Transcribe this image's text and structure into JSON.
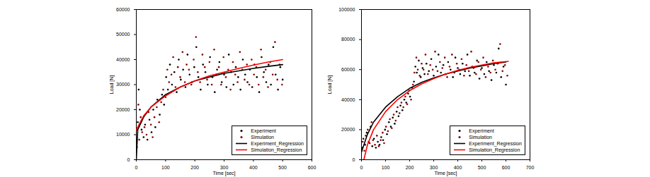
{
  "chart_data": [
    {
      "type": "scatter",
      "x_label": "Time [sec]",
      "y_label": "Load [N]",
      "xlim": [
        0,
        600
      ],
      "xticks": [
        0,
        100,
        200,
        300,
        400,
        500,
        600
      ],
      "ylim": [
        0,
        60000
      ],
      "yticks": [
        0,
        10000,
        20000,
        30000,
        40000,
        50000,
        60000
      ],
      "legend": "lower right",
      "series": [
        {
          "name": "Experiment",
          "type": "scatter",
          "marker": "circle",
          "color": "#000000",
          "x": [
            2,
            5,
            8,
            12,
            18,
            25,
            30,
            38,
            45,
            52,
            58,
            65,
            72,
            80,
            88,
            95,
            102,
            108,
            115,
            122,
            130,
            138,
            145,
            152,
            160,
            168,
            175,
            182,
            190,
            198,
            205,
            212,
            220,
            228,
            236,
            244,
            252,
            260,
            268,
            276,
            284,
            292,
            300,
            308,
            316,
            324,
            332,
            340,
            348,
            356,
            364,
            372,
            380,
            388,
            396,
            404,
            412,
            420,
            428,
            436,
            444,
            452,
            460,
            468,
            476,
            484,
            492,
            500
          ],
          "values": [
            5000,
            15000,
            28000,
            20000,
            12000,
            9000,
            14000,
            8000,
            16000,
            11000,
            20000,
            13000,
            24000,
            18000,
            26000,
            22000,
            33000,
            28000,
            38000,
            30000,
            35000,
            27000,
            40000,
            32000,
            36000,
            29000,
            42000,
            34000,
            31000,
            37000,
            45000,
            33000,
            28000,
            38000,
            35000,
            30000,
            41000,
            33000,
            27000,
            36000,
            39000,
            31000,
            34000,
            29000,
            42000,
            35000,
            30000,
            37000,
            33000,
            28000,
            40000,
            34000,
            31000,
            36000,
            29000,
            38000,
            33000,
            27000,
            41000,
            35000,
            31000,
            38000,
            30000,
            45000,
            34000,
            28000,
            37000,
            32000
          ]
        },
        {
          "name": "Simulation",
          "type": "scatter",
          "marker": "circle",
          "color": "#8b0000",
          "x": [
            3,
            7,
            10,
            15,
            20,
            28,
            35,
            42,
            50,
            56,
            62,
            70,
            78,
            85,
            92,
            100,
            106,
            112,
            120,
            126,
            134,
            142,
            150,
            158,
            166,
            172,
            180,
            188,
            196,
            204,
            210,
            218,
            226,
            234,
            242,
            250,
            258,
            266,
            274,
            282,
            290,
            298,
            306,
            314,
            322,
            330,
            338,
            346,
            354,
            362,
            370,
            378,
            386,
            394,
            402,
            410,
            418,
            426,
            434,
            442,
            450,
            458,
            466,
            474,
            482,
            490,
            498
          ],
          "values": [
            12000,
            22000,
            8000,
            17000,
            11000,
            13000,
            10000,
            19000,
            14000,
            9000,
            17000,
            21000,
            15000,
            23000,
            28000,
            25000,
            36000,
            31000,
            34000,
            41000,
            29000,
            37000,
            33000,
            43000,
            31000,
            38000,
            36000,
            30000,
            40000,
            49000,
            35000,
            31000,
            42000,
            37000,
            32000,
            39000,
            30000,
            44000,
            34000,
            37000,
            30000,
            41000,
            33000,
            36000,
            28000,
            39000,
            34000,
            31000,
            43000,
            36000,
            32000,
            38000,
            30000,
            40000,
            34000,
            37000,
            30000,
            44000,
            33000,
            36000,
            29000,
            39000,
            34000,
            47000,
            32000,
            38000,
            30000
          ]
        },
        {
          "name": "Experiment_Regression",
          "type": "line",
          "line_style": "solid",
          "color": "#000000",
          "x": [
            0,
            5,
            25,
            50,
            100,
            150,
            200,
            250,
            300,
            350,
            400,
            450,
            500
          ],
          "values": [
            0,
            12000,
            17000,
            21000,
            26000,
            29000,
            31500,
            33000,
            34500,
            35500,
            36500,
            37300,
            38000
          ]
        },
        {
          "name": "Simulation_Regression",
          "type": "line",
          "line_style": "solid",
          "color": "#ff0000",
          "x": [
            0,
            25,
            50,
            100,
            150,
            200,
            250,
            300,
            350,
            400,
            450,
            500
          ],
          "values": [
            12000,
            17500,
            21000,
            25500,
            29000,
            31500,
            33500,
            35000,
            36500,
            37800,
            39000,
            40000
          ]
        }
      ]
    },
    {
      "type": "scatter",
      "x_label": "Time [sec]",
      "y_label": "Load [N]",
      "xlim": [
        0,
        700
      ],
      "xticks": [
        0,
        100,
        200,
        300,
        400,
        500,
        600,
        700
      ],
      "ylim": [
        0,
        100000
      ],
      "yticks": [
        0,
        20000,
        40000,
        60000,
        80000,
        100000
      ],
      "legend": "lower right",
      "series": [
        {
          "name": "Experiment",
          "type": "scatter",
          "marker": "circle",
          "color": "#000000",
          "x": [
            3,
            8,
            15,
            22,
            30,
            38,
            45,
            52,
            60,
            68,
            75,
            82,
            90,
            98,
            106,
            114,
            122,
            130,
            138,
            146,
            154,
            162,
            170,
            178,
            186,
            194,
            202,
            210,
            218,
            224,
            230,
            238,
            246,
            254,
            262,
            270,
            280,
            290,
            300,
            310,
            320,
            330,
            340,
            350,
            360,
            370,
            380,
            390,
            400,
            410,
            420,
            430,
            440,
            450,
            460,
            470,
            480,
            490,
            500,
            510,
            520,
            530,
            540,
            550,
            560,
            570,
            580,
            590,
            600
          ],
          "values": [
            8000,
            14000,
            10000,
            18000,
            12000,
            22000,
            9000,
            14000,
            8000,
            12000,
            10000,
            15000,
            13000,
            20000,
            17000,
            25000,
            22000,
            28000,
            24000,
            32000,
            29000,
            36000,
            33000,
            40000,
            38000,
            44000,
            42000,
            48000,
            52000,
            62000,
            58000,
            66000,
            55000,
            61000,
            57000,
            64000,
            59000,
            67000,
            56000,
            62000,
            70000,
            58000,
            63000,
            57000,
            65000,
            60000,
            55000,
            68000,
            61000,
            57000,
            64000,
            59000,
            70000,
            56000,
            62000,
            58000,
            66000,
            54000,
            61000,
            57000,
            65000,
            59000,
            53000,
            63000,
            58000,
            74000,
            55000,
            62000,
            50000
          ]
        },
        {
          "name": "Simulation",
          "type": "scatter",
          "marker": "circle",
          "color": "#8b0000",
          "x": [
            5,
            12,
            18,
            26,
            34,
            42,
            48,
            56,
            64,
            72,
            80,
            88,
            94,
            102,
            110,
            118,
            126,
            134,
            142,
            150,
            158,
            166,
            174,
            182,
            190,
            198,
            206,
            214,
            220,
            228,
            234,
            242,
            250,
            258,
            266,
            276,
            286,
            296,
            306,
            316,
            326,
            336,
            346,
            356,
            366,
            376,
            386,
            396,
            406,
            416,
            426,
            436,
            446,
            456,
            466,
            476,
            486,
            496,
            506,
            516,
            526,
            536,
            546,
            556,
            566,
            576,
            586,
            596,
            606
          ],
          "values": [
            12000,
            6000,
            16000,
            20000,
            11000,
            25000,
            13000,
            10000,
            16000,
            9000,
            13000,
            18000,
            11000,
            22000,
            19000,
            27000,
            21000,
            30000,
            26000,
            35000,
            31000,
            38000,
            35000,
            42000,
            37000,
            46000,
            40000,
            50000,
            58000,
            68000,
            60000,
            56000,
            64000,
            60000,
            70000,
            57000,
            63000,
            60000,
            72000,
            59000,
            65000,
            61000,
            68000,
            55000,
            62000,
            70000,
            58000,
            64000,
            60000,
            67000,
            56000,
            63000,
            59000,
            72000,
            61000,
            57000,
            65000,
            60000,
            68000,
            55000,
            62000,
            58000,
            66000,
            60000,
            64000,
            77000,
            59000,
            63000,
            56000
          ]
        },
        {
          "name": "Experiment_Regression",
          "type": "line",
          "line_style": "solid",
          "color": "#000000",
          "x": [
            0,
            25,
            50,
            100,
            150,
            200,
            250,
            300,
            350,
            400,
            450,
            500,
            550,
            600
          ],
          "values": [
            5000,
            17000,
            25000,
            35000,
            42000,
            47500,
            51500,
            54500,
            57000,
            59000,
            61000,
            62500,
            64000,
            65000
          ]
        },
        {
          "name": "Simulation_Regression",
          "type": "line",
          "line_style": "solid",
          "color": "#ff0000",
          "x": [
            10,
            25,
            50,
            100,
            150,
            200,
            250,
            300,
            350,
            400,
            450,
            500,
            550,
            610
          ],
          "values": [
            0,
            10000,
            20000,
            32000,
            40000,
            46000,
            50500,
            54000,
            57000,
            59500,
            61500,
            63000,
            64500,
            65500
          ]
        }
      ]
    }
  ]
}
